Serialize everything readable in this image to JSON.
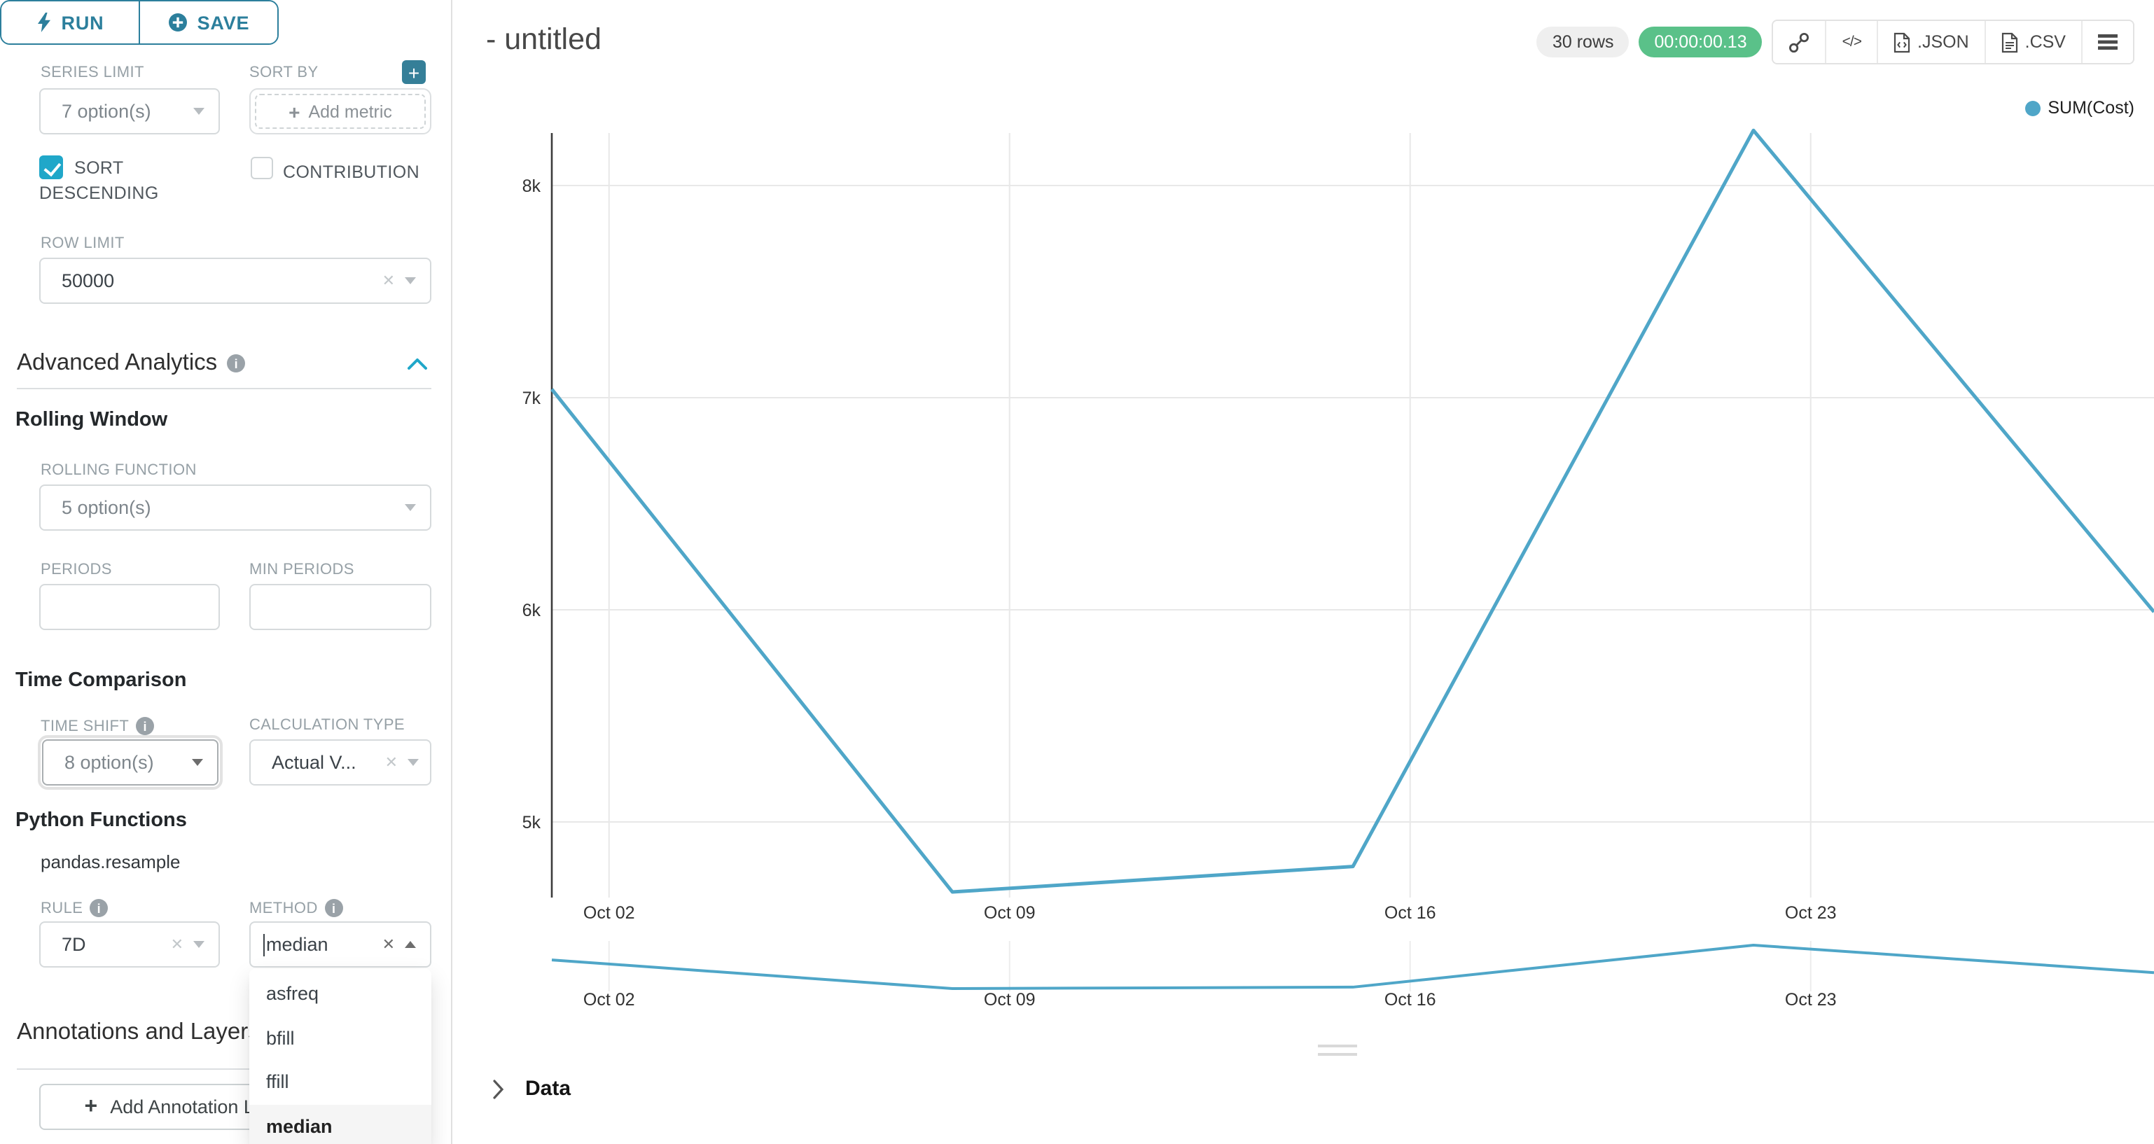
{
  "icons": {
    "plus": "+",
    "clear": "✕",
    "code": "</>"
  },
  "sidebar": {
    "run_button": "RUN",
    "save_button": "SAVE",
    "series_limit": {
      "label": "SERIES LIMIT",
      "value": "7 option(s)"
    },
    "sort_by": {
      "label": "SORT BY",
      "placeholder": "Add metric"
    },
    "sort_descending": {
      "label": "SORT DESCENDING",
      "checked": true
    },
    "contribution": {
      "label": "CONTRIBUTION",
      "checked": false
    },
    "row_limit": {
      "label": "ROW LIMIT",
      "value": "50000"
    },
    "advanced_analytics": {
      "title": "Advanced Analytics"
    },
    "rolling_window": {
      "title": "Rolling Window",
      "rolling_function": {
        "label": "ROLLING FUNCTION",
        "value": "5 option(s)"
      },
      "periods": {
        "label": "PERIODS",
        "value": ""
      },
      "min_periods": {
        "label": "MIN PERIODS",
        "value": ""
      }
    },
    "time_comparison": {
      "title": "Time Comparison",
      "time_shift": {
        "label": "TIME SHIFT",
        "value": "8 option(s)"
      },
      "calculation_type": {
        "label": "CALCULATION TYPE",
        "value": "Actual V..."
      }
    },
    "python_functions": {
      "title": "Python Functions",
      "subtitle": "pandas.resample",
      "rule": {
        "label": "RULE",
        "value": "7D"
      },
      "method": {
        "label": "METHOD",
        "value": "median",
        "options": [
          "asfreq",
          "bfill",
          "ffill",
          "median"
        ],
        "selected_option": "median"
      }
    },
    "annotations": {
      "title": "Annotations and Layers",
      "add_button": "Add Annotation Layer"
    }
  },
  "header": {
    "title": "- untitled",
    "row_count": "30 rows",
    "timer": "00:00:00.13",
    "export_json": ".JSON",
    "export_csv": ".CSV"
  },
  "legend": {
    "label": "SUM(Cost)",
    "color": "#4fa6c8"
  },
  "data_panel": {
    "title": "Data"
  },
  "chart_data": {
    "type": "line",
    "title": "",
    "xlabel": "",
    "ylabel": "",
    "grid": true,
    "legend_position": "top-right",
    "x_axis": {
      "type": "time",
      "tick_labels": [
        "Oct 02",
        "Oct 09",
        "Oct 16",
        "Oct 23"
      ],
      "tick_days": [
        1,
        8,
        15,
        22
      ],
      "domain_days": [
        0,
        28
      ]
    },
    "y_axis": {
      "tick_labels": [
        "5k",
        "6k",
        "7k",
        "8k"
      ],
      "tick_values": [
        5000,
        6000,
        7000,
        8000
      ],
      "ylim": [
        4650,
        8270
      ]
    },
    "series": [
      {
        "name": "SUM(Cost)",
        "color": "#4fa6c8",
        "x_days": [
          0,
          7,
          14,
          21,
          28
        ],
        "values": [
          7040,
          4670,
          4790,
          8260,
          5990
        ]
      }
    ],
    "preview": {
      "x_days": [
        0,
        7,
        14,
        21,
        28
      ],
      "values": [
        7040,
        4670,
        4790,
        8260,
        5990
      ]
    }
  }
}
